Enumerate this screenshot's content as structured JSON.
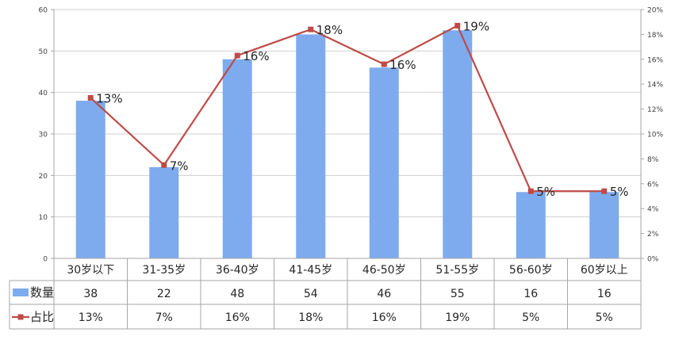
{
  "chart_data": {
    "type": "bar",
    "categories": [
      "30岁以下",
      "31-35岁",
      "36-40岁",
      "41-45岁",
      "46-50岁",
      "51-55岁",
      "56-60岁",
      "60岁以上"
    ],
    "series": [
      {
        "name": "数量",
        "type": "bar",
        "axis": "left",
        "color": "#7eabee",
        "values": [
          38,
          22,
          48,
          54,
          46,
          55,
          16,
          16
        ],
        "table_labels": [
          "38",
          "22",
          "48",
          "54",
          "46",
          "55",
          "16",
          "16"
        ]
      },
      {
        "name": "占比",
        "type": "line",
        "axis": "right",
        "color": "#be4b48",
        "values": [
          12.9,
          7.5,
          16.3,
          18.4,
          15.6,
          18.7,
          5.4,
          5.4
        ],
        "data_labels": [
          "13%",
          "7%",
          "16%",
          "18%",
          "16%",
          "19%",
          "5%",
          "5%"
        ],
        "table_labels": [
          "13%",
          "7%",
          "16%",
          "18%",
          "16%",
          "19%",
          "5%",
          "5%"
        ]
      }
    ],
    "y_left": {
      "min": 0,
      "max": 60,
      "ticks": [
        "0",
        "10",
        "20",
        "30",
        "40",
        "50",
        "60"
      ]
    },
    "y_right": {
      "min": 0,
      "max": 20,
      "ticks": [
        "0%",
        "2%",
        "4%",
        "6%",
        "8%",
        "10%",
        "12%",
        "14%",
        "16%",
        "18%",
        "20%"
      ]
    },
    "grid": true,
    "data_table": true
  }
}
